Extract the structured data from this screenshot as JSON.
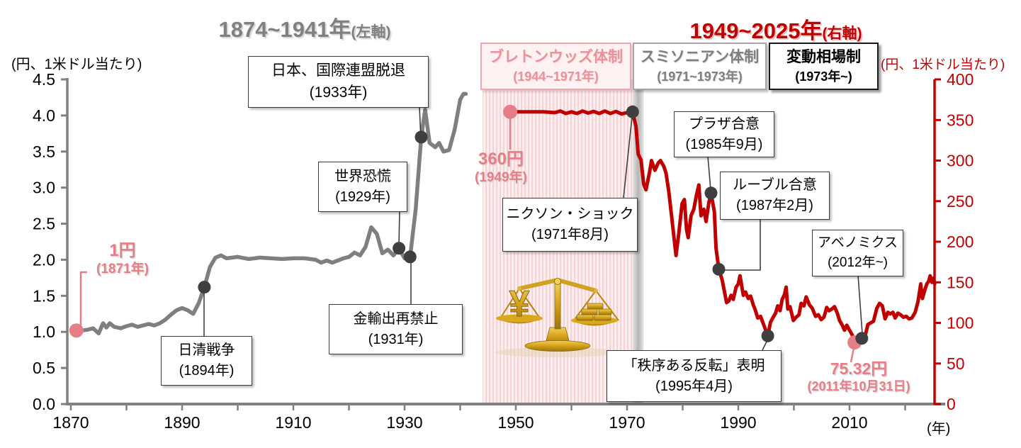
{
  "header": {
    "left_title": {
      "main": "1874~1941年",
      "suffix": "(左軸)"
    },
    "right_title": {
      "main": "1949~2025年",
      "suffix": "(右軸)"
    },
    "left_axis_unit": "(円、1米ドル当たり)",
    "right_axis_unit": "(円、1米ドル当たり)",
    "x_axis_unit": "(年)"
  },
  "period_boxes": [
    {
      "id": "bretton-woods",
      "line1": "ブレトンウッズ体制",
      "line2": "(1944~1971年)"
    },
    {
      "id": "smithsonian",
      "line1": "スミソニアン体制",
      "line2": "(1971~1973年)"
    },
    {
      "id": "floating-rate",
      "line1": "変動相場制",
      "line2": "(1973年~)"
    }
  ],
  "event_boxes": {
    "sino": {
      "line1": "日清戦争",
      "line2": "(1894年)"
    },
    "depression": {
      "line1": "世界恐慌",
      "line2": "(1929年)"
    },
    "league": {
      "line1": "日本、国際連盟脱退",
      "line2": "(1933年)"
    },
    "goldban": {
      "line1": "金輸出再禁止",
      "line2": "(1931年)"
    },
    "nixon": {
      "line1": "ニクソン・ショック",
      "line2": "(1971年8月)"
    },
    "plaza": {
      "line1": "プラザ合意",
      "line2": "(1985年9月)"
    },
    "louvre": {
      "line1": "ルーブル合意",
      "line2": "(1987年2月)"
    },
    "abenomics": {
      "line1": "アベノミクス",
      "line2": "(2012年~)"
    },
    "orderly": {
      "line1": "「秩序ある反転」表明",
      "line2": "(1995年4月)"
    }
  },
  "point_labels": {
    "one_yen": {
      "line1": "1円",
      "line2": "(1871年)"
    },
    "start_360": {
      "line1": "360円",
      "line2": "(1949年)"
    },
    "low_7532": {
      "line1": "75.32円",
      "line2": "(2011年10月31日)"
    }
  },
  "chart_data": {
    "type": "line",
    "titles": [
      "1874~1941年(左軸)",
      "1949~2025年(右軸)"
    ],
    "x_axis": {
      "unit": "(年)",
      "major_tick_labels": [
        1870,
        1890,
        1910,
        1930,
        1950,
        1970,
        1990,
        2010
      ],
      "minor_tick_step": 10,
      "minor_tick_range": [
        1870,
        2020
      ],
      "range": [
        1868,
        2027
      ]
    },
    "y_left": {
      "unit": "(円、1米ドル当たり)",
      "range": [
        0,
        4.5
      ],
      "tick_labels": [
        "0.0",
        "0.5",
        "1.0",
        "1.5",
        "2.0",
        "2.5",
        "3.0",
        "3.5",
        "4.0",
        "4.5"
      ]
    },
    "y_right": {
      "unit": "(円、1米ドル当たり)",
      "range": [
        0,
        400
      ],
      "tick_labels": [
        "0",
        "50",
        "100",
        "150",
        "200",
        "250",
        "300",
        "350",
        "400"
      ]
    },
    "colors": {
      "gray_line": "#7f7f7f",
      "red_line": "#c00000",
      "pink": "#e57e86",
      "dark_dot": "#3f3f3f",
      "axis_gray": "#808080"
    },
    "regions": [
      {
        "id": "bretton-woods",
        "label": "ブレトンウッズ体制(1944~1971年)",
        "from": 1944,
        "to": 1971,
        "style": "pink-striped"
      },
      {
        "id": "smithsonian",
        "label": "スミソニアン体制(1971~1973年)",
        "from": 1971,
        "to": 1973,
        "style": "gray"
      }
    ],
    "series": [
      {
        "name": "1874~1941年(左軸)",
        "axis": "left",
        "color": "#7f7f7f",
        "points": [
          [
            1871,
            1.02
          ],
          [
            1872,
            1.02
          ],
          [
            1873,
            1.03
          ],
          [
            1874,
            1.05
          ],
          [
            1875,
            0.98
          ],
          [
            1875.8,
            1.12
          ],
          [
            1876.4,
            1.06
          ],
          [
            1877,
            1.12
          ],
          [
            1877.8,
            1.07
          ],
          [
            1879,
            1.05
          ],
          [
            1880,
            1.08
          ],
          [
            1881,
            1.1
          ],
          [
            1882,
            1.07
          ],
          [
            1883,
            1.09
          ],
          [
            1884,
            1.11
          ],
          [
            1885,
            1.09
          ],
          [
            1886,
            1.12
          ],
          [
            1887,
            1.17
          ],
          [
            1888,
            1.24
          ],
          [
            1889,
            1.3
          ],
          [
            1890,
            1.33
          ],
          [
            1891,
            1.3
          ],
          [
            1892,
            1.25
          ],
          [
            1893,
            1.4
          ],
          [
            1894,
            1.62
          ],
          [
            1895,
            1.9
          ],
          [
            1896,
            2.03
          ],
          [
            1897,
            2.06
          ],
          [
            1898,
            2.02
          ],
          [
            1900,
            2.04
          ],
          [
            1902,
            2.01
          ],
          [
            1904,
            2.03
          ],
          [
            1906,
            2.02
          ],
          [
            1908,
            2.01
          ],
          [
            1910,
            2.02
          ],
          [
            1912,
            2.02
          ],
          [
            1914,
            2.0
          ],
          [
            1915,
            1.96
          ],
          [
            1916,
            1.99
          ],
          [
            1917,
            1.96
          ],
          [
            1918,
            1.99
          ],
          [
            1919,
            2.02
          ],
          [
            1920,
            2.04
          ],
          [
            1921,
            2.1
          ],
          [
            1922,
            2.06
          ],
          [
            1923,
            2.18
          ],
          [
            1924,
            2.45
          ],
          [
            1925,
            2.36
          ],
          [
            1926,
            2.09
          ],
          [
            1927,
            2.14
          ],
          [
            1928,
            2.06
          ],
          [
            1929,
            2.16
          ],
          [
            1930,
            2.02
          ],
          [
            1931,
            2.04
          ],
          [
            1932,
            2.7
          ],
          [
            1933,
            3.7
          ],
          [
            1933.7,
            4.08
          ],
          [
            1934.5,
            3.62
          ],
          [
            1935.5,
            3.56
          ],
          [
            1936.2,
            3.62
          ],
          [
            1937,
            3.5
          ],
          [
            1938,
            3.52
          ],
          [
            1939,
            3.8
          ],
          [
            1940,
            4.22
          ],
          [
            1940.6,
            4.3
          ],
          [
            1941,
            4.3
          ]
        ]
      },
      {
        "name": "1949~2025年(右軸)",
        "axis": "right",
        "color": "#c00000",
        "points": [
          [
            1949,
            360
          ],
          [
            1950,
            360
          ],
          [
            1951,
            360
          ],
          [
            1953,
            360
          ],
          [
            1955,
            360
          ],
          [
            1957,
            359
          ],
          [
            1958,
            361
          ],
          [
            1959,
            358
          ],
          [
            1960,
            360
          ],
          [
            1961,
            358
          ],
          [
            1962,
            361
          ],
          [
            1963,
            358.5
          ],
          [
            1964,
            360.5
          ],
          [
            1965,
            358
          ],
          [
            1966,
            361
          ],
          [
            1967,
            358
          ],
          [
            1968,
            360.5
          ],
          [
            1969,
            357.5
          ],
          [
            1970,
            359
          ],
          [
            1970.6,
            357
          ],
          [
            1971,
            360
          ],
          [
            1971.6,
            342
          ],
          [
            1972,
            308
          ],
          [
            1972.5,
            301
          ],
          [
            1973,
            271
          ],
          [
            1973.4,
            264
          ],
          [
            1974,
            284
          ],
          [
            1974.4,
            300
          ],
          [
            1975,
            288
          ],
          [
            1975.6,
            297
          ],
          [
            1976,
            300
          ],
          [
            1976.6,
            293
          ],
          [
            1977,
            285
          ],
          [
            1977.5,
            262
          ],
          [
            1978,
            232
          ],
          [
            1978.8,
            183
          ],
          [
            1979.3,
            210
          ],
          [
            1979.9,
            247
          ],
          [
            1980.3,
            252
          ],
          [
            1980.7,
            215
          ],
          [
            1981,
            205
          ],
          [
            1981.5,
            232
          ],
          [
            1982,
            240
          ],
          [
            1982.5,
            258
          ],
          [
            1982.9,
            270
          ],
          [
            1983.3,
            232
          ],
          [
            1983.8,
            240
          ],
          [
            1984.2,
            225
          ],
          [
            1984.7,
            248
          ],
          [
            1985.1,
            260
          ],
          [
            1985.7,
            237
          ],
          [
            1986,
            192
          ],
          [
            1986.5,
            166
          ],
          [
            1987.1,
            153
          ],
          [
            1987.9,
            125
          ],
          [
            1988.3,
            127
          ],
          [
            1988.7,
            134
          ],
          [
            1989.1,
            129
          ],
          [
            1989.6,
            144
          ],
          [
            1990,
            148
          ],
          [
            1990.3,
            158
          ],
          [
            1990.9,
            134
          ],
          [
            1991.3,
            138
          ],
          [
            1991.8,
            130
          ],
          [
            1992.2,
            133
          ],
          [
            1992.7,
            122
          ],
          [
            1993,
            117
          ],
          [
            1993.5,
            106
          ],
          [
            1994,
            108
          ],
          [
            1994.5,
            99
          ],
          [
            1995.3,
            84
          ],
          [
            1995.8,
            101
          ],
          [
            1996.2,
            106
          ],
          [
            1996.7,
            112
          ],
          [
            1997.1,
            121
          ],
          [
            1997.5,
            115
          ],
          [
            1997.9,
            129
          ],
          [
            1998.3,
            135
          ],
          [
            1998.6,
            144
          ],
          [
            1998.9,
            117
          ],
          [
            1999.3,
            120
          ],
          [
            1999.9,
            103
          ],
          [
            2000.4,
            107
          ],
          [
            2000.9,
            110
          ],
          [
            2001.3,
            124
          ],
          [
            2001.8,
            121
          ],
          [
            2002.2,
            132
          ],
          [
            2002.8,
            122
          ],
          [
            2003.3,
            118
          ],
          [
            2003.9,
            108
          ],
          [
            2004.4,
            110
          ],
          [
            2004.9,
            104
          ],
          [
            2005.4,
            107
          ],
          [
            2005.9,
            119
          ],
          [
            2006.3,
            115
          ],
          [
            2006.8,
            117
          ],
          [
            2007.3,
            120
          ],
          [
            2007.8,
            112
          ],
          [
            2008.2,
            103
          ],
          [
            2008.7,
            97
          ],
          [
            2009.1,
            91
          ],
          [
            2009.5,
            97
          ],
          [
            2010,
            91
          ],
          [
            2010.5,
            85
          ],
          [
            2010.9,
            76
          ],
          [
            2011.4,
            80
          ],
          [
            2011.8,
            77
          ],
          [
            2012.2,
            81
          ],
          [
            2012.8,
            84
          ],
          [
            2013.3,
            98
          ],
          [
            2013.8,
            100
          ],
          [
            2014.3,
            102
          ],
          [
            2014.9,
            118
          ],
          [
            2015.4,
            124
          ],
          [
            2015.9,
            121
          ],
          [
            2016.4,
            105
          ],
          [
            2016.9,
            113
          ],
          [
            2017.3,
            111
          ],
          [
            2017.8,
            113
          ],
          [
            2018.2,
            106
          ],
          [
            2018.7,
            112
          ],
          [
            2019.2,
            110
          ],
          [
            2019.7,
            107
          ],
          [
            2020.2,
            108
          ],
          [
            2020.7,
            105
          ],
          [
            2021.2,
            106
          ],
          [
            2021.8,
            113
          ],
          [
            2022.3,
            126
          ],
          [
            2022.8,
            148
          ],
          [
            2023.1,
            130
          ],
          [
            2023.6,
            142
          ],
          [
            2023.9,
            148
          ],
          [
            2024.2,
            151
          ],
          [
            2024.5,
            158
          ],
          [
            2024.8,
            150
          ],
          [
            2025.1,
            155
          ],
          [
            2025.3,
            148
          ]
        ]
      }
    ],
    "markers": [
      {
        "year": 1871,
        "value": 1.02,
        "axis": "left",
        "kind": "pink",
        "event": "1円(1871年)"
      },
      {
        "year": 1894,
        "value": 1.62,
        "axis": "left",
        "kind": "dark",
        "event": "日清戦争(1894年)"
      },
      {
        "year": 1929,
        "value": 2.16,
        "axis": "left",
        "kind": "dark",
        "event": "世界恐慌(1929年)"
      },
      {
        "year": 1931,
        "value": 2.04,
        "axis": "left",
        "kind": "dark",
        "event": "金輸出再禁止(1931年)"
      },
      {
        "year": 1933,
        "value": 3.7,
        "axis": "left",
        "kind": "dark",
        "event": "日本、国際連盟脱退(1933年)"
      },
      {
        "year": 1949,
        "value": 360,
        "axis": "right",
        "kind": "pink",
        "event": "360円(1949年)"
      },
      {
        "year": 1971,
        "value": 360,
        "axis": "right",
        "kind": "dark",
        "event": "ニクソン・ショック(1971年8月)"
      },
      {
        "year": 1985.1,
        "value": 260,
        "axis": "right",
        "kind": "dark",
        "event": "プラザ合意(1985年9月)"
      },
      {
        "year": 1986.5,
        "value": 166,
        "axis": "right",
        "kind": "dark",
        "event": "ルーブル合意(1987年2月)"
      },
      {
        "year": 1995.3,
        "value": 84,
        "axis": "right",
        "kind": "dark",
        "event": "「秩序ある反転」表明(1995年4月)"
      },
      {
        "year": 2010.9,
        "value": 76,
        "axis": "right",
        "kind": "pink",
        "event": "75.32円(2011年10月31日)"
      },
      {
        "year": 2012.2,
        "value": 81,
        "axis": "right",
        "kind": "dark",
        "event": "アベノミクス(2012年~)"
      }
    ]
  }
}
